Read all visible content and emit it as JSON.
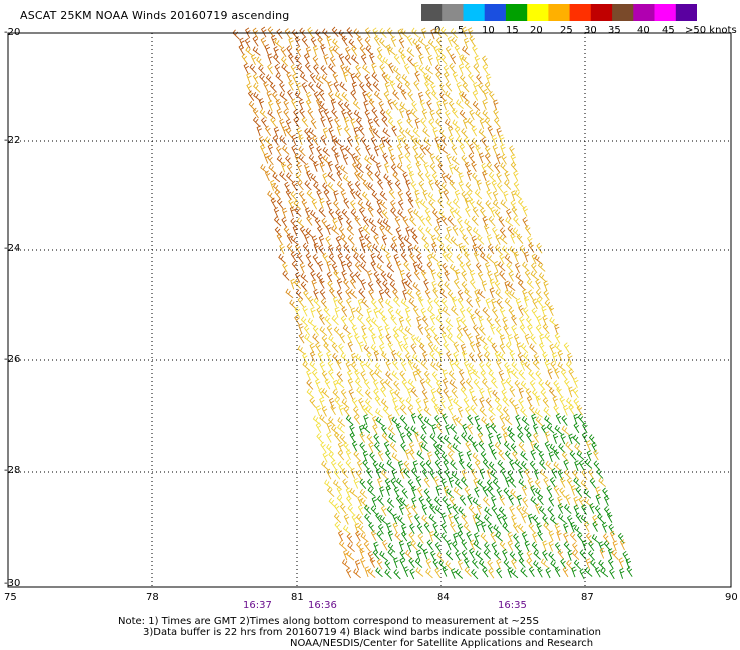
{
  "title": "ASCAT 25KM NOAA Winds 20160719 ascending",
  "colorbar": {
    "labels": [
      "0",
      "5",
      "10",
      "15",
      "20",
      "25",
      "30",
      "35",
      "40",
      "45",
      ">50 knots"
    ],
    "colors": [
      "#555555",
      "#8a8a8a",
      "#00bfff",
      "#1a4fe0",
      "#00a000",
      "#ffff00",
      "#ffb000",
      "#ff3000",
      "#c00000",
      "#7a4a2a",
      "#b000b0",
      "#ff00ff",
      "#5a00a0"
    ]
  },
  "axes": {
    "lat_labels": [
      "-20",
      "-22",
      "-24",
      "-26",
      "-28",
      "-30"
    ],
    "lon_labels": [
      "75",
      "78",
      "81",
      "84",
      "87",
      "90"
    ]
  },
  "times": [
    "16:37",
    "16:36",
    "16:35"
  ],
  "notes": [
    "Note: 1) Times are GMT 2)Times along bottom correspond to measurement at ~25S",
    "3)Data buffer is 22 hrs from 20160719 4) Black wind barbs indicate possible contamination",
    "NOAA/NESDIS/Center for Satellite Applications and Research"
  ]
}
